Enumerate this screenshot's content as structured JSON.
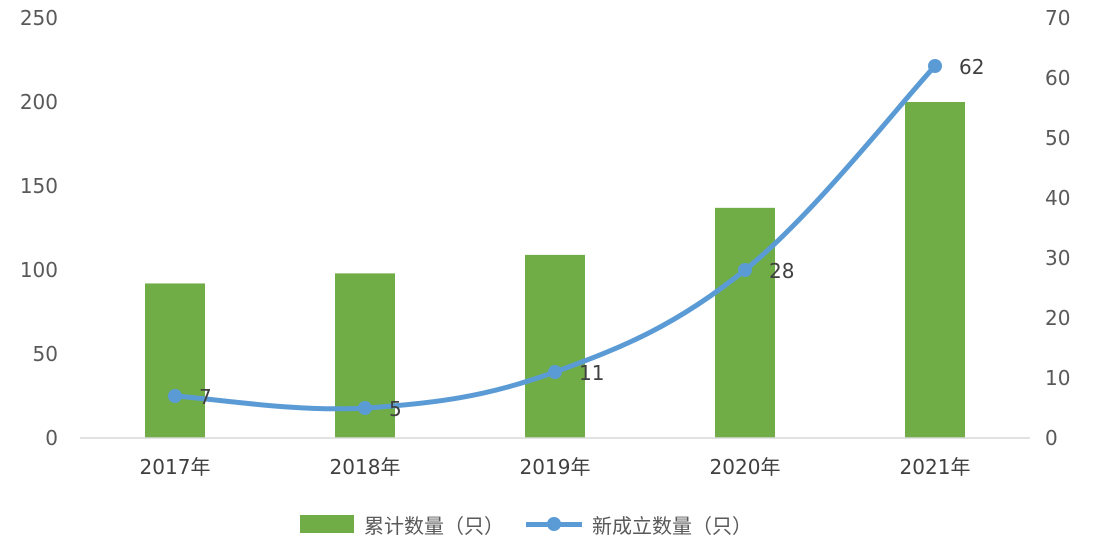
{
  "chart_data": {
    "type": "bar+line",
    "categories": [
      "2017年",
      "2018年",
      "2019年",
      "2020年",
      "2021年"
    ],
    "series": [
      {
        "name": "累计数量（只）",
        "type": "bar",
        "axis": "left",
        "values": [
          92,
          98,
          109,
          137,
          200
        ],
        "color": "#70ad47"
      },
      {
        "name": "新成立数量（只）",
        "type": "line",
        "axis": "right",
        "values": [
          7,
          5,
          11,
          28,
          62
        ],
        "color": "#5b9bd5",
        "data_labels": true
      }
    ],
    "y_left": {
      "range": [
        0,
        250
      ],
      "ticks": [
        "0",
        "50",
        "100",
        "150",
        "200",
        "250"
      ]
    },
    "y_right": {
      "range": [
        0,
        70
      ],
      "ticks": [
        "0",
        "10",
        "20",
        "30",
        "40",
        "50",
        "60",
        "70"
      ]
    },
    "grid": false,
    "legend_position": "bottom"
  }
}
